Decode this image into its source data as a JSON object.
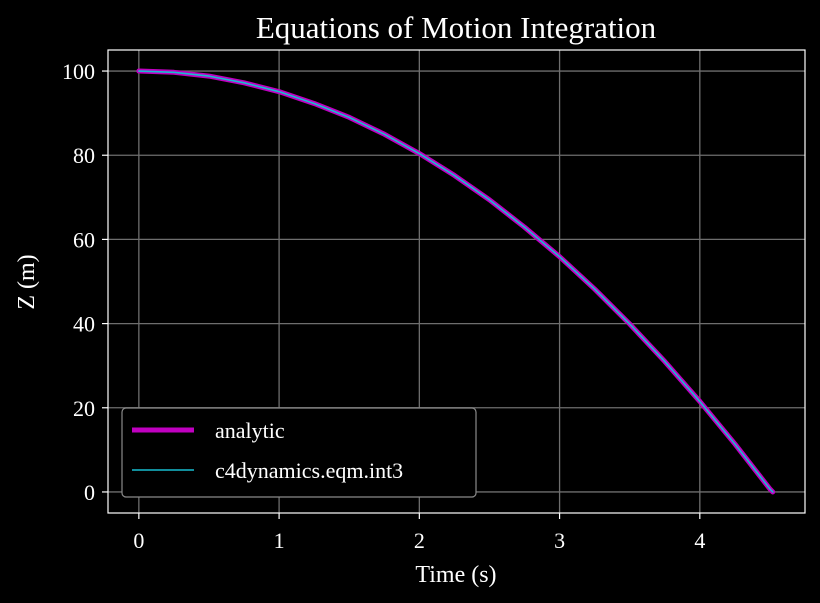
{
  "chart_data": {
    "type": "line",
    "title": "Equations of Motion Integration",
    "xlabel": "Time (s)",
    "ylabel": "Z (m)",
    "xlim": [
      -0.22,
      4.75
    ],
    "ylim": [
      -5,
      105
    ],
    "xticks": [
      0,
      1,
      2,
      3,
      4
    ],
    "yticks": [
      0,
      20,
      40,
      60,
      80,
      100
    ],
    "grid": true,
    "legend_position": "lower-left",
    "background": "#000000",
    "series": [
      {
        "name": "analytic",
        "color": "#c000c0",
        "style": "thick",
        "x": [
          0,
          0.25,
          0.5,
          0.75,
          1.0,
          1.25,
          1.5,
          1.75,
          2.0,
          2.25,
          2.5,
          2.75,
          3.0,
          3.25,
          3.5,
          3.75,
          4.0,
          4.25,
          4.5,
          4.52
        ],
        "y": [
          100,
          99.7,
          98.8,
          97.2,
          95.1,
          92.3,
          89.0,
          85.0,
          80.4,
          75.2,
          69.4,
          62.9,
          55.9,
          48.2,
          39.9,
          31.0,
          21.5,
          11.4,
          0.7,
          0.0
        ]
      },
      {
        "name": "c4dynamics.eqm.int3",
        "color": "#17becf",
        "style": "thin",
        "x": [
          0,
          0.25,
          0.5,
          0.75,
          1.0,
          1.25,
          1.5,
          1.75,
          2.0,
          2.25,
          2.5,
          2.75,
          3.0,
          3.25,
          3.5,
          3.75,
          4.0,
          4.25,
          4.5,
          4.52
        ],
        "y": [
          100,
          99.7,
          98.8,
          97.2,
          95.1,
          92.3,
          89.0,
          85.0,
          80.4,
          75.2,
          69.4,
          62.9,
          55.9,
          48.2,
          39.9,
          31.0,
          21.5,
          11.4,
          0.7,
          0.0
        ]
      }
    ]
  }
}
